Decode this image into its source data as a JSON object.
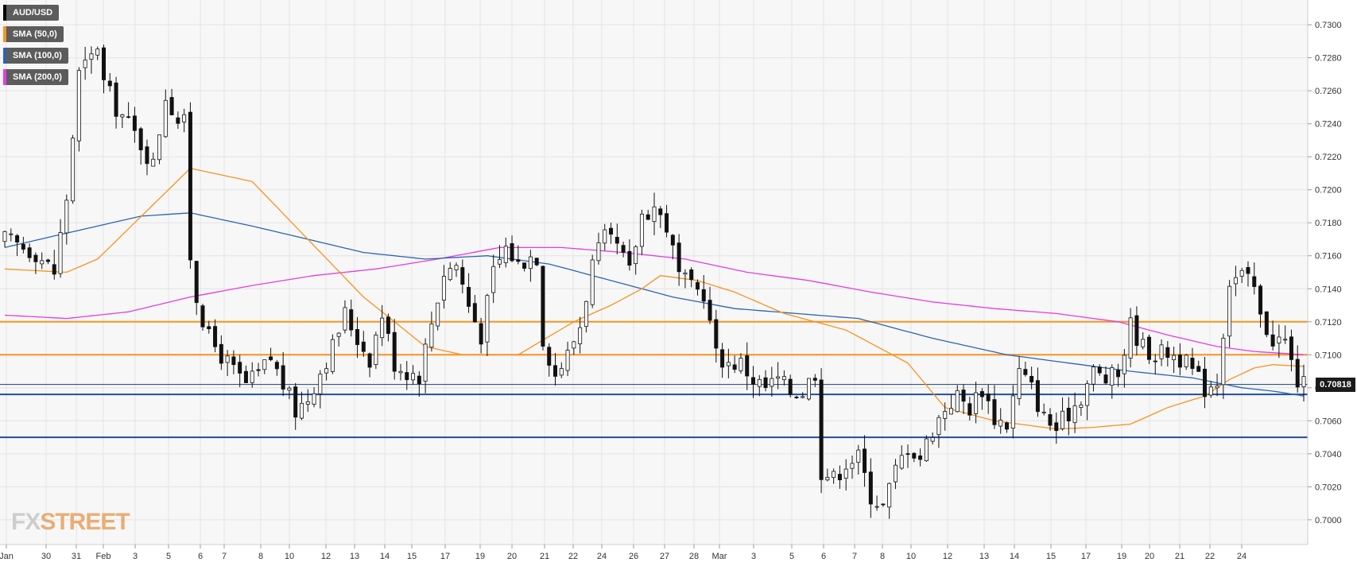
{
  "legend": {
    "symbol": "AUD/USD",
    "sma50": "SMA (50,0)",
    "sma100": "SMA (100,0)",
    "sma200": "SMA (200,0)"
  },
  "watermark": {
    "fx": "FX",
    "street": "STREET"
  },
  "last_price_label": "0.70818",
  "colors": {
    "sma50": "#f7931e",
    "sma100": "#2a64b5",
    "sma200": "#e43ce4",
    "resistance": "#f7931e",
    "support": "#1f4e9c",
    "symbol": "#000000"
  },
  "chart_data": {
    "type": "candlestick",
    "title": "AUD/USD",
    "ylim": [
      0.6985,
      0.7315
    ],
    "yticks": [
      "0.7300",
      "0.7280",
      "0.7260",
      "0.7240",
      "0.7220",
      "0.7200",
      "0.7180",
      "0.7160",
      "0.7140",
      "0.7120",
      "0.7100",
      "0.7080",
      "0.7060",
      "0.7040",
      "0.7020",
      "0.7000"
    ],
    "xticks": [
      "Jan",
      "30",
      "31",
      "Feb",
      "3",
      "5",
      "6",
      "7",
      "8",
      "10",
      "12",
      "13",
      "14",
      "15",
      "17",
      "19",
      "20",
      "21",
      "22",
      "24",
      "26",
      "27",
      "28",
      "Mar",
      "3",
      "5",
      "6",
      "7",
      "8",
      "10",
      "12",
      "13",
      "14",
      "15",
      "17",
      "19",
      "20",
      "21",
      "22",
      "24"
    ],
    "horizontal_levels": [
      {
        "value": 0.712,
        "role": "resistance"
      },
      {
        "value": 0.71,
        "role": "resistance"
      },
      {
        "value": 0.7082,
        "role": "last-price"
      },
      {
        "value": 0.7076,
        "role": "support"
      },
      {
        "value": 0.705,
        "role": "support"
      }
    ],
    "last_price": 0.70818,
    "close_anchors": [
      [
        0,
        0.717
      ],
      [
        5,
        0.7162
      ],
      [
        8,
        0.715
      ],
      [
        10,
        0.7195
      ],
      [
        12,
        0.727
      ],
      [
        14,
        0.728
      ],
      [
        15,
        0.7288
      ],
      [
        16,
        0.7265
      ],
      [
        18,
        0.725
      ],
      [
        20,
        0.724
      ],
      [
        22,
        0.7228
      ],
      [
        24,
        0.7215
      ],
      [
        26,
        0.7258
      ],
      [
        28,
        0.7242
      ],
      [
        29,
        0.724
      ],
      [
        30,
        0.716
      ],
      [
        31,
        0.7135
      ],
      [
        33,
        0.711
      ],
      [
        35,
        0.71
      ],
      [
        37,
        0.709
      ],
      [
        39,
        0.7082
      ],
      [
        41,
        0.7088
      ],
      [
        43,
        0.7098
      ],
      [
        45,
        0.7082
      ],
      [
        47,
        0.7066
      ],
      [
        49,
        0.7074
      ],
      [
        51,
        0.709
      ],
      [
        53,
        0.7105
      ],
      [
        55,
        0.7125
      ],
      [
        57,
        0.711
      ],
      [
        59,
        0.7098
      ],
      [
        61,
        0.7125
      ],
      [
        63,
        0.7095
      ],
      [
        65,
        0.709
      ],
      [
        67,
        0.7088
      ],
      [
        69,
        0.712
      ],
      [
        71,
        0.715
      ],
      [
        73,
        0.7155
      ],
      [
        75,
        0.713
      ],
      [
        77,
        0.7112
      ],
      [
        79,
        0.715
      ],
      [
        81,
        0.7165
      ],
      [
        83,
        0.7155
      ],
      [
        85,
        0.716
      ],
      [
        86,
        0.716
      ],
      [
        87,
        0.711
      ],
      [
        89,
        0.7088
      ],
      [
        91,
        0.71
      ],
      [
        93,
        0.7118
      ],
      [
        95,
        0.7155
      ],
      [
        97,
        0.717
      ],
      [
        99,
        0.7165
      ],
      [
        101,
        0.715
      ],
      [
        103,
        0.7185
      ],
      [
        105,
        0.719
      ],
      [
        107,
        0.7178
      ],
      [
        109,
        0.7148
      ],
      [
        111,
        0.714
      ],
      [
        113,
        0.7138
      ],
      [
        115,
        0.71
      ],
      [
        117,
        0.7095
      ],
      [
        119,
        0.7095
      ],
      [
        121,
        0.7085
      ],
      [
        123,
        0.708
      ],
      [
        125,
        0.7085
      ],
      [
        127,
        0.7078
      ],
      [
        129,
        0.7078
      ],
      [
        131,
        0.709
      ],
      [
        132,
        0.703
      ],
      [
        134,
        0.7025
      ],
      [
        136,
        0.7035
      ],
      [
        138,
        0.7038
      ],
      [
        140,
        0.7015
      ],
      [
        142,
        0.7008
      ],
      [
        144,
        0.703
      ],
      [
        146,
        0.7045
      ],
      [
        148,
        0.7038
      ],
      [
        150,
        0.7055
      ],
      [
        152,
        0.7068
      ],
      [
        154,
        0.7075
      ],
      [
        156,
        0.7068
      ],
      [
        158,
        0.708
      ],
      [
        160,
        0.7062
      ],
      [
        162,
        0.7058
      ],
      [
        164,
        0.709
      ],
      [
        166,
        0.708
      ],
      [
        168,
        0.7062
      ],
      [
        170,
        0.7055
      ],
      [
        172,
        0.7065
      ],
      [
        174,
        0.7075
      ],
      [
        176,
        0.709
      ],
      [
        178,
        0.7085
      ],
      [
        180,
        0.7088
      ],
      [
        182,
        0.7118
      ],
      [
        184,
        0.7105
      ],
      [
        186,
        0.71
      ],
      [
        188,
        0.7102
      ],
      [
        190,
        0.7098
      ],
      [
        192,
        0.709
      ],
      [
        194,
        0.708
      ],
      [
        196,
        0.7085
      ],
      [
        198,
        0.7145
      ],
      [
        200,
        0.7148
      ],
      [
        202,
        0.714
      ],
      [
        203,
        0.7122
      ],
      [
        205,
        0.711
      ],
      [
        207,
        0.7108
      ],
      [
        208,
        0.7095
      ],
      [
        209,
        0.7084
      ],
      [
        210,
        0.7082
      ]
    ],
    "sma50_anchors": [
      [
        0,
        0.7152
      ],
      [
        10,
        0.715
      ],
      [
        15,
        0.7158
      ],
      [
        30,
        0.7213
      ],
      [
        40,
        0.7205
      ],
      [
        49,
        0.717
      ],
      [
        58,
        0.7135
      ],
      [
        68,
        0.7105
      ],
      [
        74,
        0.71
      ],
      [
        83,
        0.71
      ],
      [
        92,
        0.712
      ],
      [
        98,
        0.713
      ],
      [
        103,
        0.714
      ],
      [
        106,
        0.7148
      ],
      [
        112,
        0.7145
      ],
      [
        118,
        0.7138
      ],
      [
        126,
        0.7125
      ],
      [
        136,
        0.7115
      ],
      [
        146,
        0.7095
      ],
      [
        152,
        0.7068
      ],
      [
        160,
        0.706
      ],
      [
        170,
        0.7055
      ],
      [
        176,
        0.7056
      ],
      [
        182,
        0.7058
      ],
      [
        188,
        0.7068
      ],
      [
        194,
        0.7075
      ],
      [
        198,
        0.7085
      ],
      [
        202,
        0.7092
      ],
      [
        205,
        0.7094
      ],
      [
        210,
        0.7093
      ]
    ],
    "sma100_anchors": [
      [
        0,
        0.7165
      ],
      [
        8,
        0.7172
      ],
      [
        15,
        0.7178
      ],
      [
        22,
        0.7184
      ],
      [
        30,
        0.7186
      ],
      [
        40,
        0.7178
      ],
      [
        49,
        0.717
      ],
      [
        58,
        0.7162
      ],
      [
        68,
        0.7158
      ],
      [
        78,
        0.716
      ],
      [
        88,
        0.7155
      ],
      [
        98,
        0.7145
      ],
      [
        108,
        0.7135
      ],
      [
        118,
        0.7128
      ],
      [
        128,
        0.7125
      ],
      [
        138,
        0.7122
      ],
      [
        150,
        0.711
      ],
      [
        162,
        0.71
      ],
      [
        172,
        0.7095
      ],
      [
        182,
        0.709
      ],
      [
        192,
        0.7086
      ],
      [
        200,
        0.708
      ],
      [
        205,
        0.7078
      ],
      [
        210,
        0.7075
      ]
    ],
    "sma200_anchors": [
      [
        0,
        0.7124
      ],
      [
        10,
        0.7122
      ],
      [
        20,
        0.7126
      ],
      [
        30,
        0.7135
      ],
      [
        40,
        0.7142
      ],
      [
        50,
        0.7148
      ],
      [
        60,
        0.7152
      ],
      [
        70,
        0.7158
      ],
      [
        80,
        0.7165
      ],
      [
        90,
        0.7165
      ],
      [
        100,
        0.7162
      ],
      [
        110,
        0.7158
      ],
      [
        120,
        0.715
      ],
      [
        130,
        0.7145
      ],
      [
        140,
        0.7138
      ],
      [
        150,
        0.7132
      ],
      [
        160,
        0.7128
      ],
      [
        170,
        0.7125
      ],
      [
        180,
        0.712
      ],
      [
        188,
        0.7112
      ],
      [
        196,
        0.7105
      ],
      [
        202,
        0.7102
      ],
      [
        210,
        0.71
      ]
    ]
  }
}
